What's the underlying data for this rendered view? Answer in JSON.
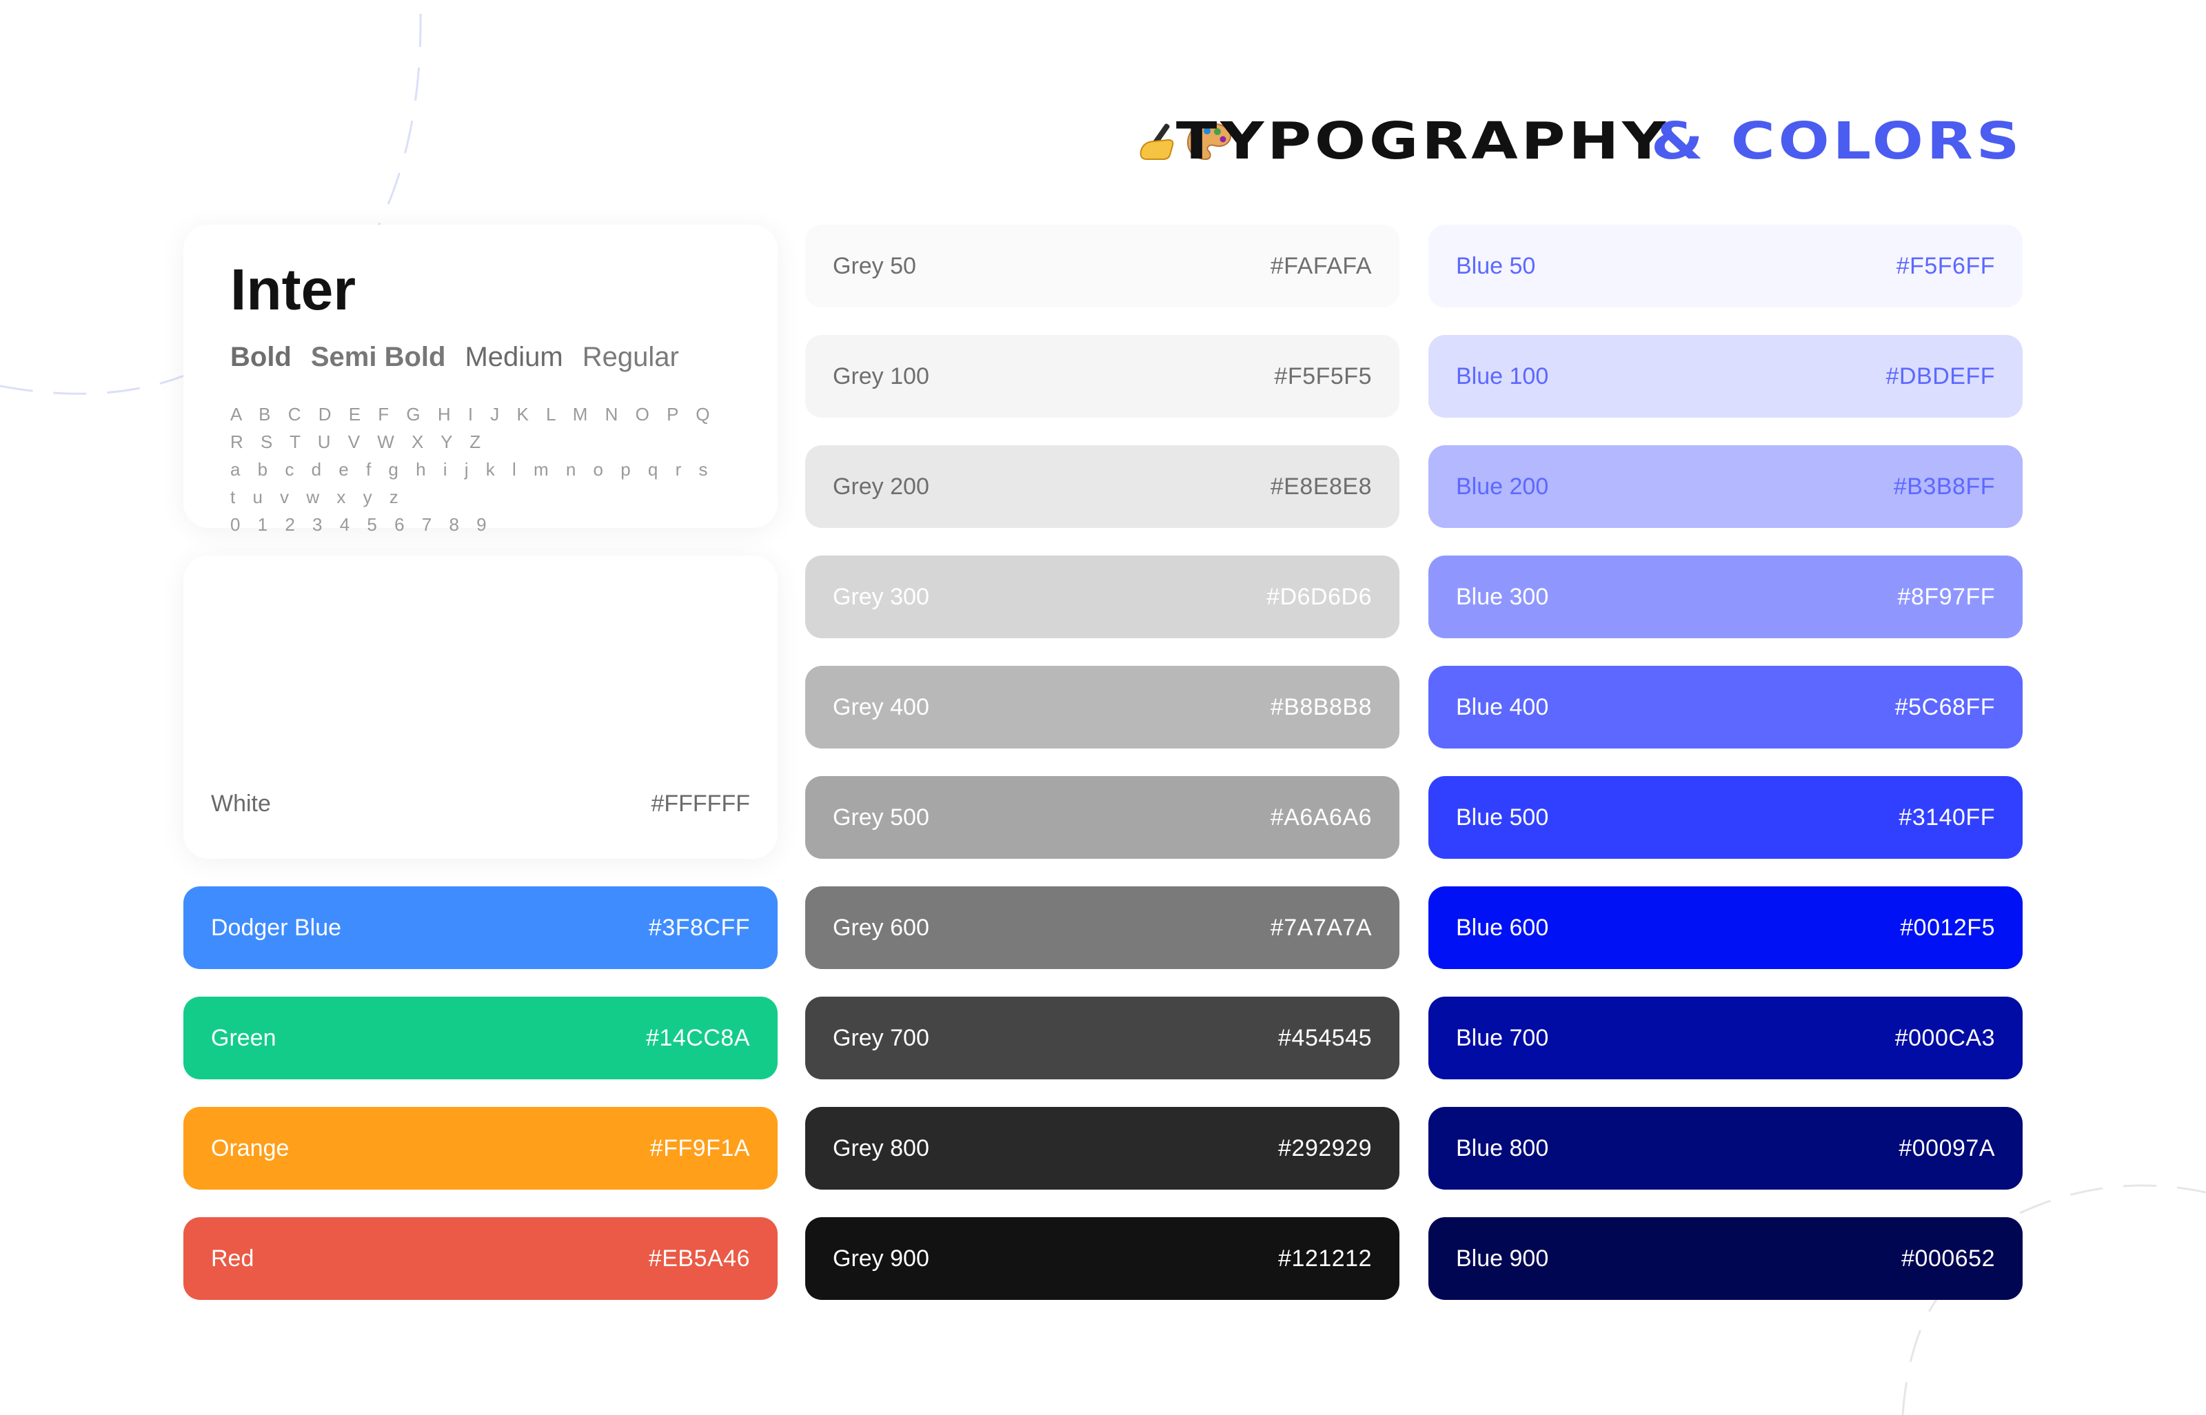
{
  "header": {
    "title_part1": "TYPOGRAPHY",
    "title_part2": "& COLORS",
    "icons": [
      "writing-hand-icon",
      "artist-palette-icon"
    ]
  },
  "typography": {
    "font_name": "Inter",
    "weights": [
      "Bold",
      "Semi Bold",
      "Medium",
      "Regular"
    ],
    "uppercase": "A B C D E F G H I J K L M N O P Q R S T U V W X Y Z",
    "lowercase": "a b c d e f g h i j k l m n o p q r s t u v w x y z",
    "digits": "0 1 2 3 4 5 6 7 8 9"
  },
  "white": {
    "name": "White",
    "hex": "#FFFFFF"
  },
  "accents": [
    {
      "name": "Dodger Blue",
      "hex": "#3F8CFF",
      "text": "#FFFFFF"
    },
    {
      "name": "Green",
      "hex": "#14CC8A",
      "text": "#FFFFFF"
    },
    {
      "name": "Orange",
      "hex": "#FF9F1A",
      "text": "#FFFFFF"
    },
    {
      "name": "Red",
      "hex": "#EB5A46",
      "text": "#FFFFFF"
    }
  ],
  "greys": [
    {
      "name": "Grey 50",
      "hex": "#FAFAFA",
      "text": "#6E6E6E"
    },
    {
      "name": "Grey 100",
      "hex": "#F5F5F5",
      "text": "#6E6E6E"
    },
    {
      "name": "Grey 200",
      "hex": "#E8E8E8",
      "text": "#6E6E6E"
    },
    {
      "name": "Grey 300",
      "hex": "#D6D6D6",
      "text": "#FFFFFF"
    },
    {
      "name": "Grey 400",
      "hex": "#B8B8B8",
      "text": "#FFFFFF"
    },
    {
      "name": "Grey 500",
      "hex": "#A6A6A6",
      "text": "#FFFFFF"
    },
    {
      "name": "Grey 600",
      "hex": "#7A7A7A",
      "text": "#FFFFFF"
    },
    {
      "name": "Grey 700",
      "hex": "#454545",
      "text": "#FFFFFF"
    },
    {
      "name": "Grey 800",
      "hex": "#292929",
      "text": "#FFFFFF"
    },
    {
      "name": "Grey 900",
      "hex": "#121212",
      "text": "#FFFFFF"
    }
  ],
  "blues": [
    {
      "name": "Blue 50",
      "hex": "#F5F6FF",
      "text": "#5C68FF"
    },
    {
      "name": "Blue 100",
      "hex": "#DBDEFF",
      "text": "#5C68FF"
    },
    {
      "name": "Blue 200",
      "hex": "#B3B8FF",
      "text": "#5C68FF"
    },
    {
      "name": "Blue 300",
      "hex": "#8F97FF",
      "text": "#FFFFFF"
    },
    {
      "name": "Blue 400",
      "hex": "#5C68FF",
      "text": "#FFFFFF"
    },
    {
      "name": "Blue 500",
      "hex": "#3140FF",
      "text": "#FFFFFF"
    },
    {
      "name": "Blue 600",
      "hex": "#0012F5",
      "text": "#FFFFFF"
    },
    {
      "name": "Blue 700",
      "hex": "#000CA3",
      "text": "#FFFFFF"
    },
    {
      "name": "Blue 800",
      "hex": "#00097A",
      "text": "#FFFFFF"
    },
    {
      "name": "Blue 900",
      "hex": "#000652",
      "text": "#FFFFFF"
    }
  ]
}
